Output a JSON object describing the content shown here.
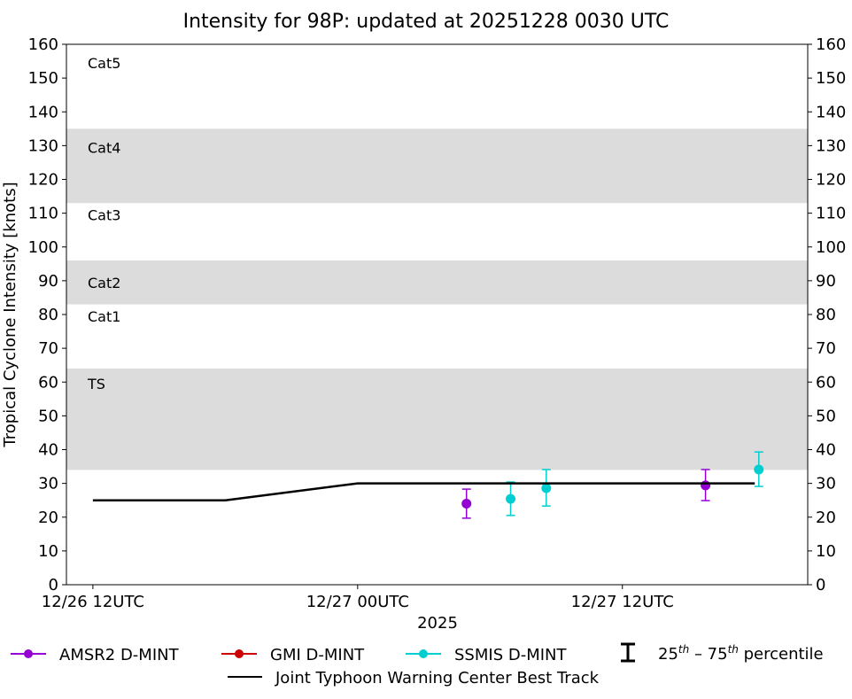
{
  "chart_data": {
    "type": "scatter",
    "title": "Intensity for 98P: updated at 20251228 0030 UTC",
    "xlabel": "2025",
    "ylabel": "Tropical Cyclone Intensity [knots]",
    "xlim": [
      "2025-12-26 10:48",
      "2025-12-27 20:24"
    ],
    "ylim": [
      0,
      160
    ],
    "yticks": [
      0,
      10,
      20,
      30,
      40,
      50,
      60,
      70,
      80,
      90,
      100,
      110,
      120,
      130,
      140,
      150,
      160
    ],
    "xticks": [
      {
        "t": "2025-12-26 12:00",
        "label": "12/26 12UTC"
      },
      {
        "t": "2025-12-27 00:00",
        "label": "12/27 00UTC"
      },
      {
        "t": "2025-12-27 12:00",
        "label": "12/27 12UTC"
      }
    ],
    "grid": false,
    "shaded_bands": [
      {
        "min": 34,
        "max": 64,
        "color": "#dcdcdc"
      },
      {
        "min": 83,
        "max": 96,
        "color": "#dcdcdc"
      },
      {
        "min": 113,
        "max": 135,
        "color": "#dcdcdc"
      }
    ],
    "category_labels": [
      "TS",
      "Cat1",
      "Cat2",
      "Cat3",
      "Cat4",
      "Cat5"
    ],
    "series": [
      {
        "name": "AMSR2 D-MINT",
        "color": "#9400d3",
        "kind": "points",
        "points": [
          {
            "t": "2025-12-27 04:56",
            "y": 24,
            "p25": 19.7,
            "p75": 28.3
          },
          {
            "t": "2025-12-27 15:46",
            "y": 29.4,
            "p25": 24.9,
            "p75": 34.1
          }
        ]
      },
      {
        "name": "GMI D-MINT",
        "color": "#cc0000",
        "kind": "points",
        "points": []
      },
      {
        "name": "SSMIS D-MINT",
        "color": "#00ced1",
        "kind": "points",
        "points": [
          {
            "t": "2025-12-27 06:56",
            "y": 25.4,
            "p25": 20.5,
            "p75": 30.4
          },
          {
            "t": "2025-12-27 08:33",
            "y": 28.6,
            "p25": 23.3,
            "p75": 34.1
          },
          {
            "t": "2025-12-27 18:11",
            "y": 34.1,
            "p25": 29.1,
            "p75": 39.3
          }
        ]
      },
      {
        "name": "Joint Typhoon Warning Center Best Track",
        "color": "#000000",
        "kind": "line",
        "points": [
          {
            "t": "2025-12-26 12:00",
            "y": 25
          },
          {
            "t": "2025-12-26 18:00",
            "y": 25
          },
          {
            "t": "2025-12-27 00:00",
            "y": 30
          },
          {
            "t": "2025-12-27 06:00",
            "y": 30
          },
          {
            "t": "2025-12-27 12:00",
            "y": 30
          },
          {
            "t": "2025-12-27 18:00",
            "y": 30
          }
        ]
      }
    ],
    "legend": {
      "placement": "bottom",
      "percentile_base1": "25",
      "percentile_sup1": "th",
      "percentile_dash": " – ",
      "percentile_base2": "75",
      "percentile_sup2": "th",
      "percentile_text": " percentile"
    }
  }
}
